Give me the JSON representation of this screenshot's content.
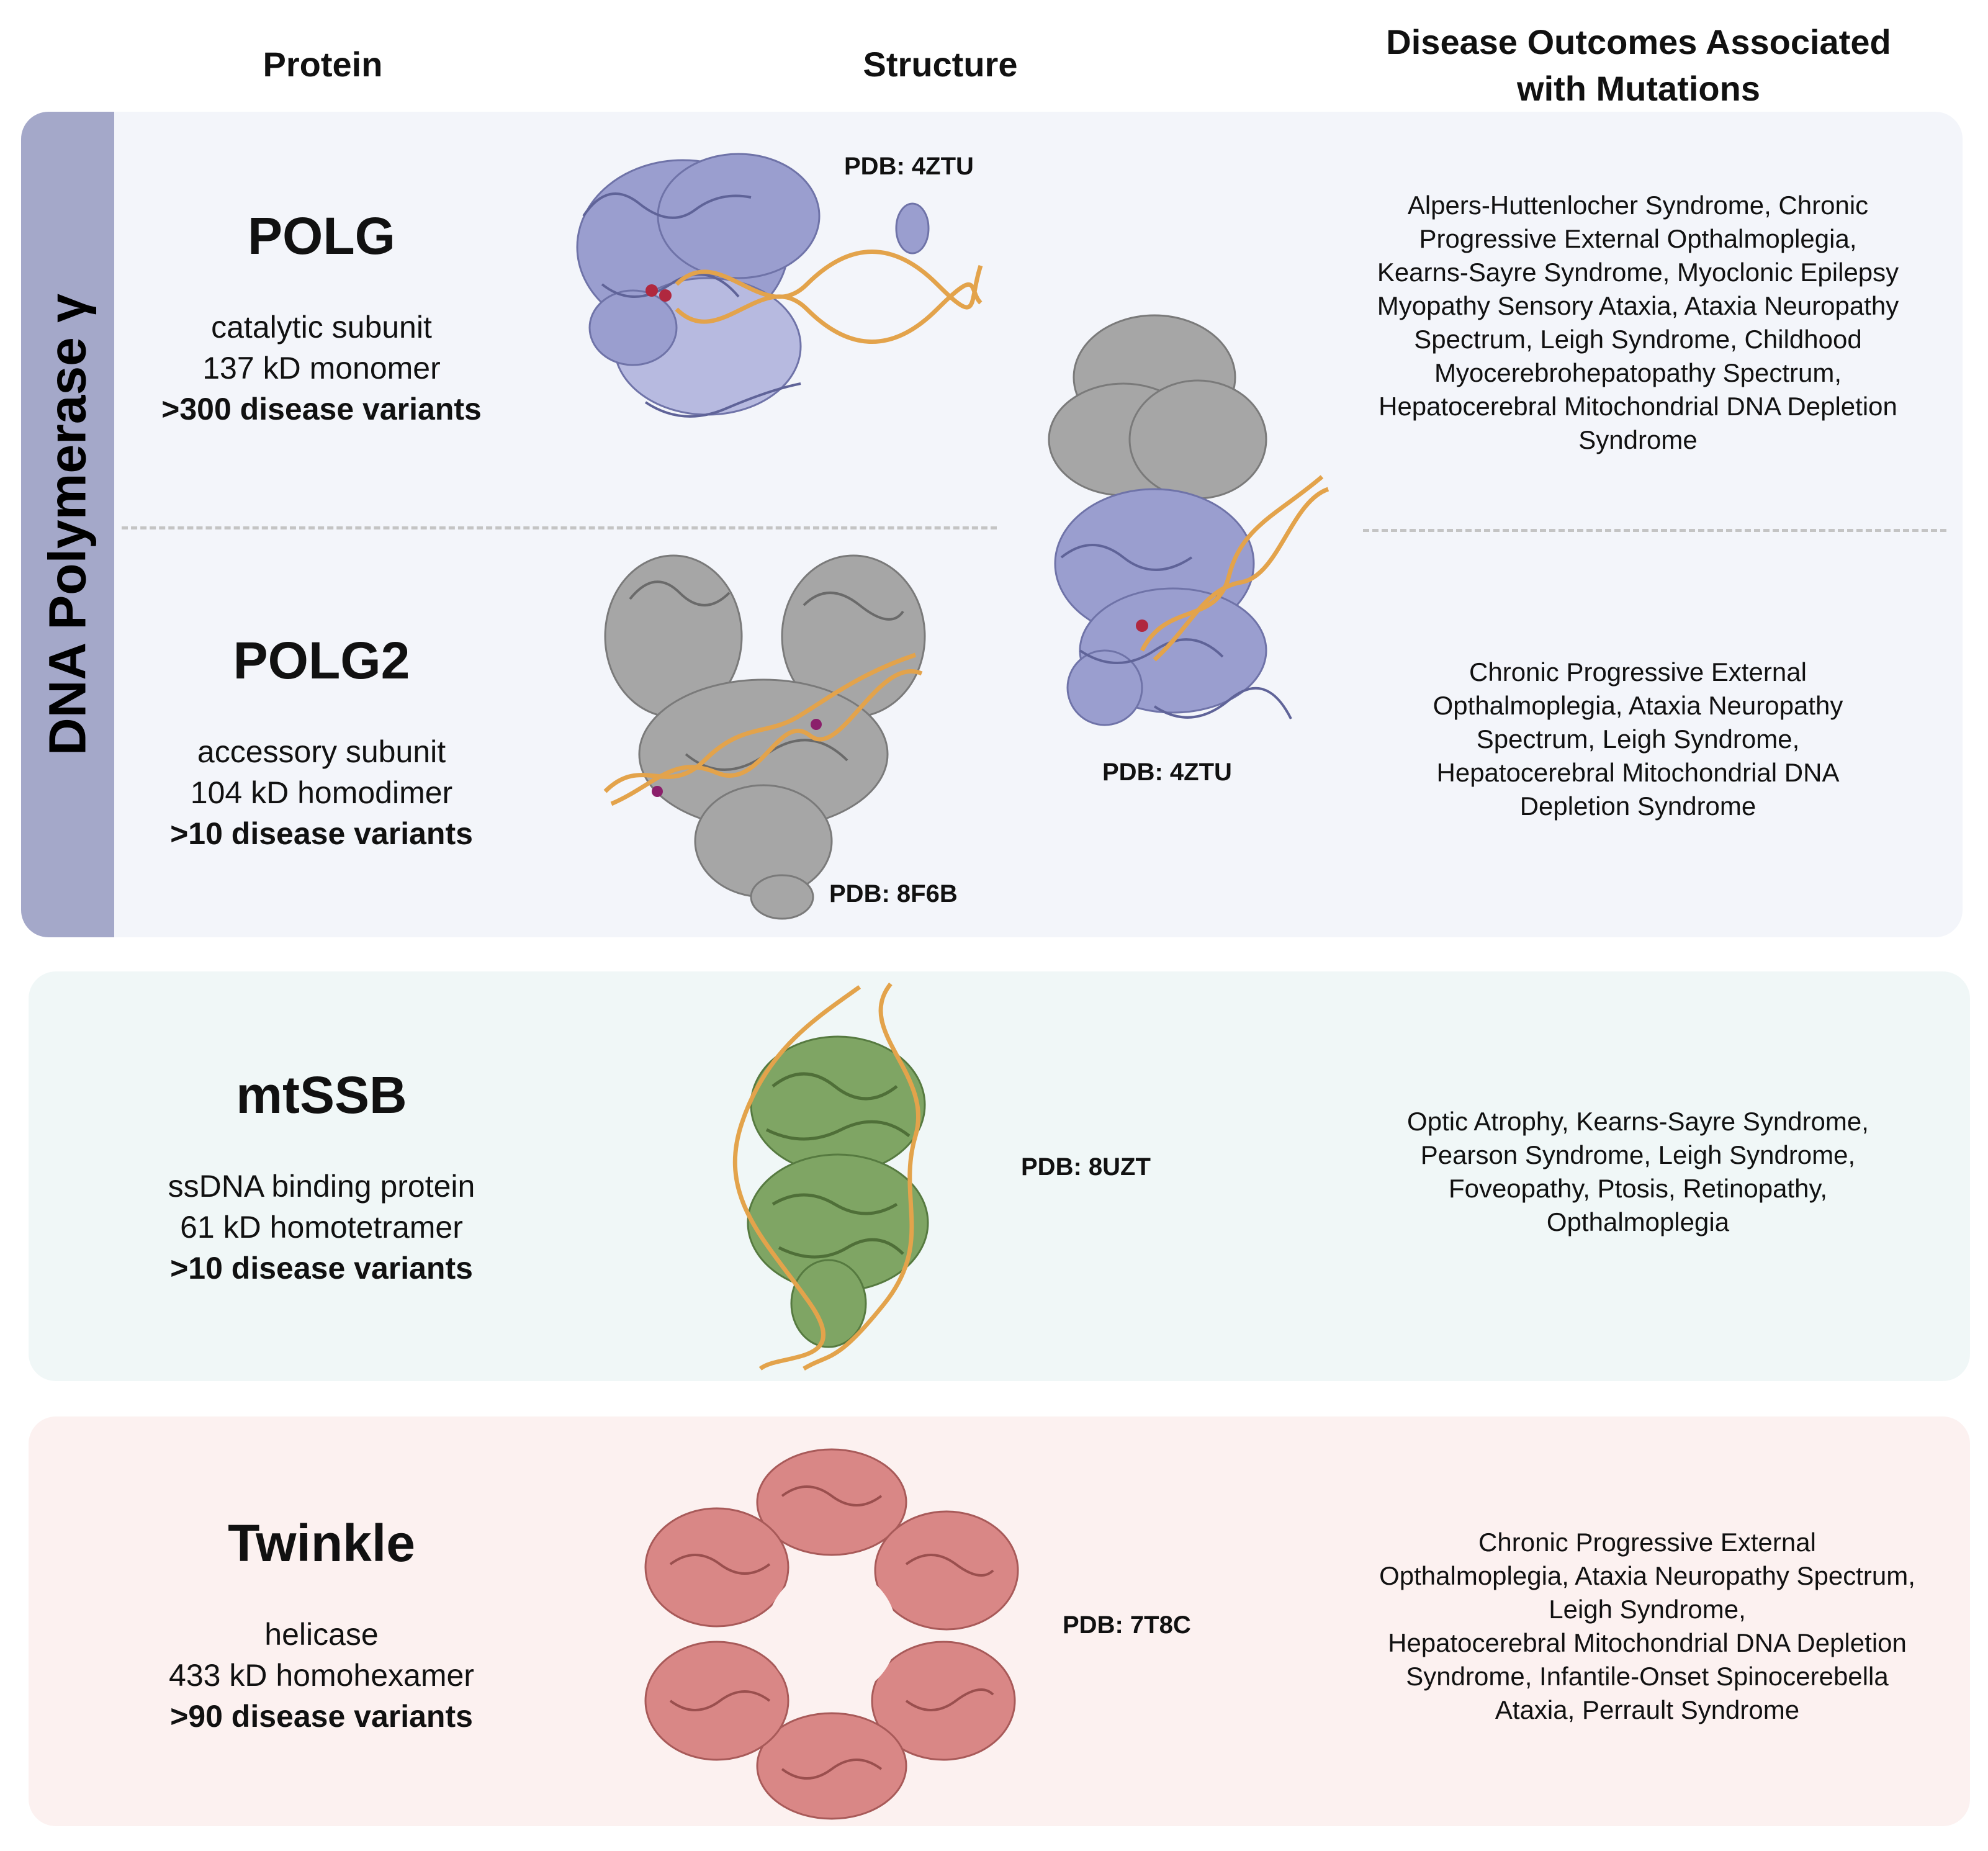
{
  "headers": {
    "protein": "Protein",
    "structure": "Structure",
    "disease_line1": "Disease Outcomes Associated",
    "disease_line2": "with Mutations"
  },
  "group_label": "DNA Polymerase γ",
  "proteins": [
    {
      "name": "POLG",
      "line1": "catalytic subunit",
      "line2": "137 kD monomer",
      "variants": ">300 disease variants",
      "pdb": "PDB: 4ZTU",
      "disease_lines": [
        "Alpers-Huttenlocher Syndrome, Chronic",
        "Progressive External Opthalmoplegia,",
        "Kearns-Sayre Syndrome, Myoclonic Epilepsy",
        "Myopathy Sensory Ataxia, Ataxia Neuropathy",
        "Spectrum, Leigh Syndrome, Childhood",
        "Myocerebrohepatopathy Spectrum,",
        "Hepatocerebral Mitochondrial DNA Depletion",
        "Syndrome"
      ]
    },
    {
      "name": "POLG2",
      "line1": "accessory subunit",
      "line2": "104 kD homodimer",
      "variants": ">10 disease variants",
      "pdb": "PDB: 8F6B",
      "disease_lines": [
        "Chronic Progressive External",
        "Opthalmoplegia, Ataxia Neuropathy",
        "Spectrum, Leigh Syndrome,",
        "Hepatocerebral Mitochondrial DNA",
        "Depletion Syndrome"
      ]
    },
    {
      "name": "mtSSB",
      "line1": "ssDNA binding protein",
      "line2": "61 kD homotetramer",
      "variants": ">10 disease variants",
      "pdb": "PDB: 8UZT",
      "disease_lines": [
        "Optic Atrophy, Kearns-Sayre Syndrome,",
        "Pearson Syndrome, Leigh Syndrome,",
        "Foveopathy, Ptosis, Retinopathy,",
        "Opthalmoplegia"
      ]
    },
    {
      "name": "Twinkle",
      "line1": "helicase",
      "line2": "433 kD homohexamer",
      "variants": ">90 disease variants",
      "pdb": "PDB: 7T8C",
      "disease_lines": [
        "Chronic Progressive External",
        "Opthalmoplegia, Ataxia Neuropathy Spectrum,",
        "Leigh Syndrome,",
        "Hepatocerebral Mitochondrial DNA Depletion",
        "Syndrome, Infantile-Onset Spinocerebella",
        "Ataxia, Perrault Syndrome"
      ]
    }
  ],
  "complex_pdb": "PDB: 4ZTU",
  "colors": {
    "polg_panel": "#f3f5fa",
    "side_bar": "#a4a8c9",
    "mtssb_panel": "#f0f7f7",
    "twinkle_panel": "#fcf1f0",
    "polg_structure": "#9a9ecf",
    "polg2_structure": "#a6a6a6",
    "dna": "#e3a34b",
    "mtssb_structure": "#7fa564",
    "twinkle_structure": "#d98786"
  }
}
